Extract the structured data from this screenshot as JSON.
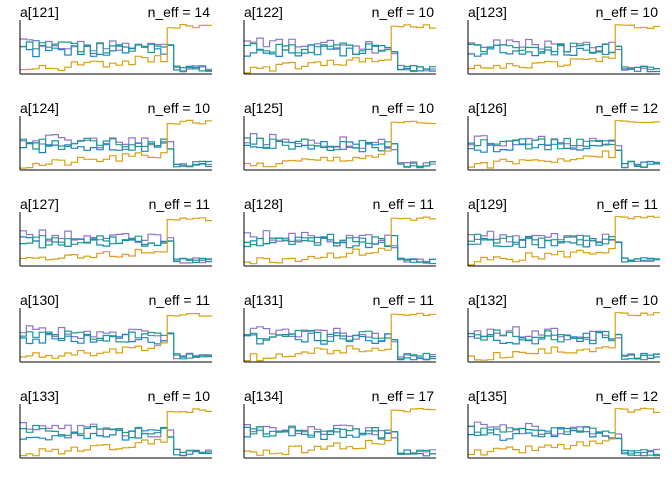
{
  "series_colors": {
    "chain_1": "#8f75c8",
    "chain_2": "#1a86c4",
    "chain_3": "#1c9a8a",
    "chain_4": "#d9a11a"
  },
  "chart_data": [
    {
      "type": "line",
      "title": "a[121]",
      "annotation": "n_eff = 14",
      "seed": 121
    },
    {
      "type": "line",
      "title": "a[122]",
      "annotation": "n_eff = 10",
      "seed": 122
    },
    {
      "type": "line",
      "title": "a[123]",
      "annotation": "n_eff = 10",
      "seed": 123
    },
    {
      "type": "line",
      "title": "a[124]",
      "annotation": "n_eff = 10",
      "seed": 124
    },
    {
      "type": "line",
      "title": "a[125]",
      "annotation": "n_eff = 10",
      "seed": 125
    },
    {
      "type": "line",
      "title": "a[126]",
      "annotation": "n_eff = 12",
      "seed": 126
    },
    {
      "type": "line",
      "title": "a[127]",
      "annotation": "n_eff = 11",
      "seed": 127
    },
    {
      "type": "line",
      "title": "a[128]",
      "annotation": "n_eff = 11",
      "seed": 128
    },
    {
      "type": "line",
      "title": "a[129]",
      "annotation": "n_eff = 11",
      "seed": 129
    },
    {
      "type": "line",
      "title": "a[130]",
      "annotation": "n_eff = 11",
      "seed": 130
    },
    {
      "type": "line",
      "title": "a[131]",
      "annotation": "n_eff = 11",
      "seed": 131
    },
    {
      "type": "line",
      "title": "a[132]",
      "annotation": "n_eff = 10",
      "seed": 132
    },
    {
      "type": "line",
      "title": "a[133]",
      "annotation": "n_eff = 10",
      "seed": 133
    },
    {
      "type": "line",
      "title": "a[134]",
      "annotation": "n_eff = 17",
      "seed": 134
    },
    {
      "type": "line",
      "title": "a[135]",
      "annotation": "n_eff = 12",
      "seed": 135
    }
  ]
}
